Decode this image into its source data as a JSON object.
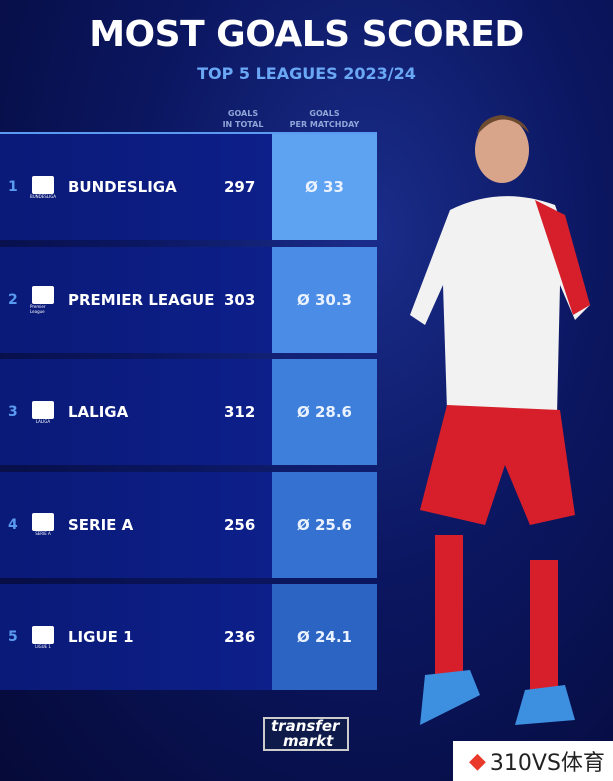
{
  "title": "MOST GOALS SCORED",
  "subtitle": "TOP 5 LEAGUES 2023/24",
  "columns": {
    "total": [
      "GOALS",
      "IN TOTAL"
    ],
    "per": [
      "GOALS",
      "PER MATCHDAY"
    ]
  },
  "rows": [
    {
      "rank": "1",
      "league": "BUNDESLIGA",
      "logo_text": "BUNDESLIGA",
      "total": "297",
      "per": "Ø 33",
      "color": "#5ea2f2"
    },
    {
      "rank": "2",
      "league": "PREMIER LEAGUE",
      "logo_text": "Premier League",
      "total": "303",
      "per": "Ø 30.3",
      "color": "#4a8ce6"
    },
    {
      "rank": "3",
      "league": "LALIGA",
      "logo_text": "LALIGA",
      "total": "312",
      "per": "Ø 28.6",
      "color": "#3f7fdc"
    },
    {
      "rank": "4",
      "league": "SERIE A",
      "logo_text": "SERIE A",
      "total": "256",
      "per": "Ø 25.6",
      "color": "#3571d0"
    },
    {
      "rank": "5",
      "league": "LIGUE 1",
      "logo_text": "LIGUE 1",
      "total": "236",
      "per": "Ø 24.1",
      "color": "#2c64c4"
    }
  ],
  "brand": {
    "line1": "transfer",
    "line2": "markt"
  },
  "watermark": "310VS体育"
}
